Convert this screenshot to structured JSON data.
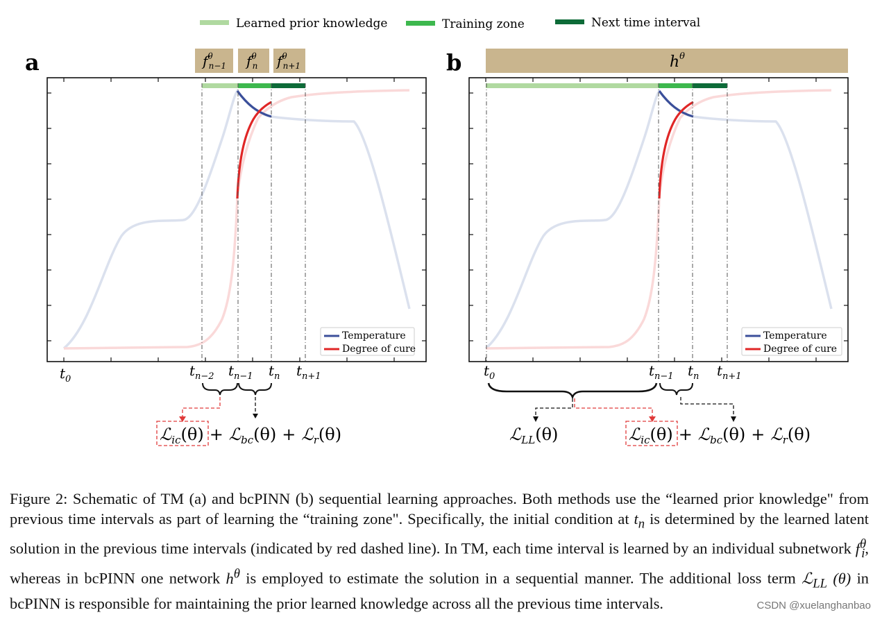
{
  "figure": {
    "legend_top": [
      {
        "label": "Learned prior knowledge",
        "color": "#b0d9a0"
      },
      {
        "label": "Training zone",
        "color": "#3db84e"
      },
      {
        "label": "Next time interval",
        "color": "#0d6b38"
      }
    ],
    "panel_a": {
      "letter": "a",
      "subnets": [
        {
          "base": "f",
          "sup": "θ",
          "sub": "n−1"
        },
        {
          "base": "f",
          "sup": "θ",
          "sub": "n"
        },
        {
          "base": "f",
          "sup": "θ",
          "sub": "n+1"
        }
      ],
      "ticks": [
        {
          "base": "t",
          "sub": "0"
        },
        {
          "base": "t",
          "sub": "n−2"
        },
        {
          "base": "t",
          "sub": "n−1"
        },
        {
          "base": "t",
          "sub": "n"
        },
        {
          "base": "t",
          "sub": "n+1"
        }
      ],
      "legend": [
        "Temperature",
        "Degree of cure"
      ],
      "loss": {
        "ic": "ic",
        "bc": "bc",
        "r": "r",
        "theta": "(θ)",
        "plus": "+"
      }
    },
    "panel_b": {
      "letter": "b",
      "network": {
        "base": "h",
        "sup": "θ"
      },
      "ticks": [
        {
          "base": "t",
          "sub": "0"
        },
        {
          "base": "t",
          "sub": "n−1"
        },
        {
          "base": "t",
          "sub": "n"
        },
        {
          "base": "t",
          "sub": "n+1"
        }
      ],
      "legend": [
        "Temperature",
        "Degree of cure"
      ],
      "loss": {
        "ll": "LL",
        "ic": "ic",
        "bc": "bc",
        "r": "r",
        "theta": "(θ)",
        "plus": "+"
      }
    },
    "colors": {
      "header_box": "#c9b58e",
      "temperature": "#3b4f9a",
      "temperature_faded": "#dbe1ee",
      "cure": "#e02626",
      "cure_faded": "#fad9d9",
      "dashed_red": "#e03a3a"
    }
  },
  "caption": {
    "p1": "Figure 2: Schematic of TM (a) and bcPINN (b) sequential learning approaches. Both methods use the “learned prior knowledge\" from previous time intervals as part of learning the “training zone\". Specifically, the initial condition at ",
    "tn_base": "t",
    "tn_sub": "n",
    "p2": " is determined by the learned latent solution in the previous time intervals (indicated by red dashed line). In TM, each time interval is learned by an individual subnetwork ",
    "fi_base": "f",
    "fi_sub": "i",
    "fi_sup": "θ",
    "p3": ", whereas in bcPINN one network ",
    "h_base": "h",
    "h_sup": "θ",
    "p4": " is employed to estimate the solution in a sequential manner. The additional loss term ",
    "ll_base": "ℒ",
    "ll_sub": "LL",
    "ll_arg": " (θ)",
    "p5": " in bcPINN is responsible for maintaining the prior learned knowledge across all the previous time intervals."
  },
  "watermark": "CSDN @xuelanghanbao"
}
